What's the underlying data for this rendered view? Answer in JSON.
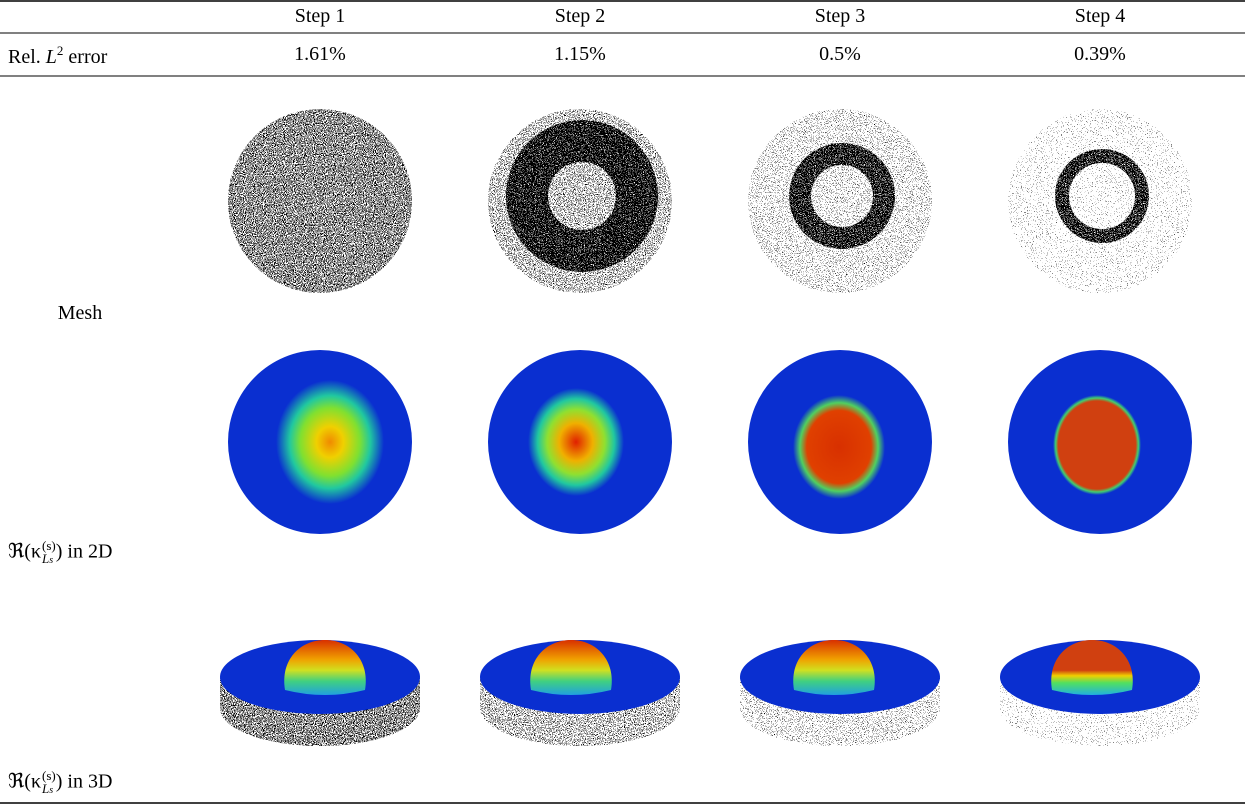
{
  "table": {
    "columns": [
      "Step 1",
      "Step 2",
      "Step 3",
      "Step 4"
    ],
    "error_row": {
      "label": {
        "prefix": "Rel.",
        "var": "L",
        "sup": "2",
        "suffix": "error"
      },
      "values": [
        "1.61%",
        "1.15%",
        "0.5%",
        "0.39%"
      ]
    },
    "image_rows": [
      {
        "label": "Mesh"
      },
      {
        "label": {
          "head": "ℜ(κ",
          "sup": "(s)",
          "sub": "L",
          "subsub": "s",
          "tail": ")",
          "suffix": "in 2D"
        }
      },
      {
        "label": {
          "head": "ℜ(κ",
          "sup": "(s)",
          "sub": "L",
          "subsub": "s",
          "tail": ")",
          "suffix": "in 3D"
        }
      }
    ]
  }
}
